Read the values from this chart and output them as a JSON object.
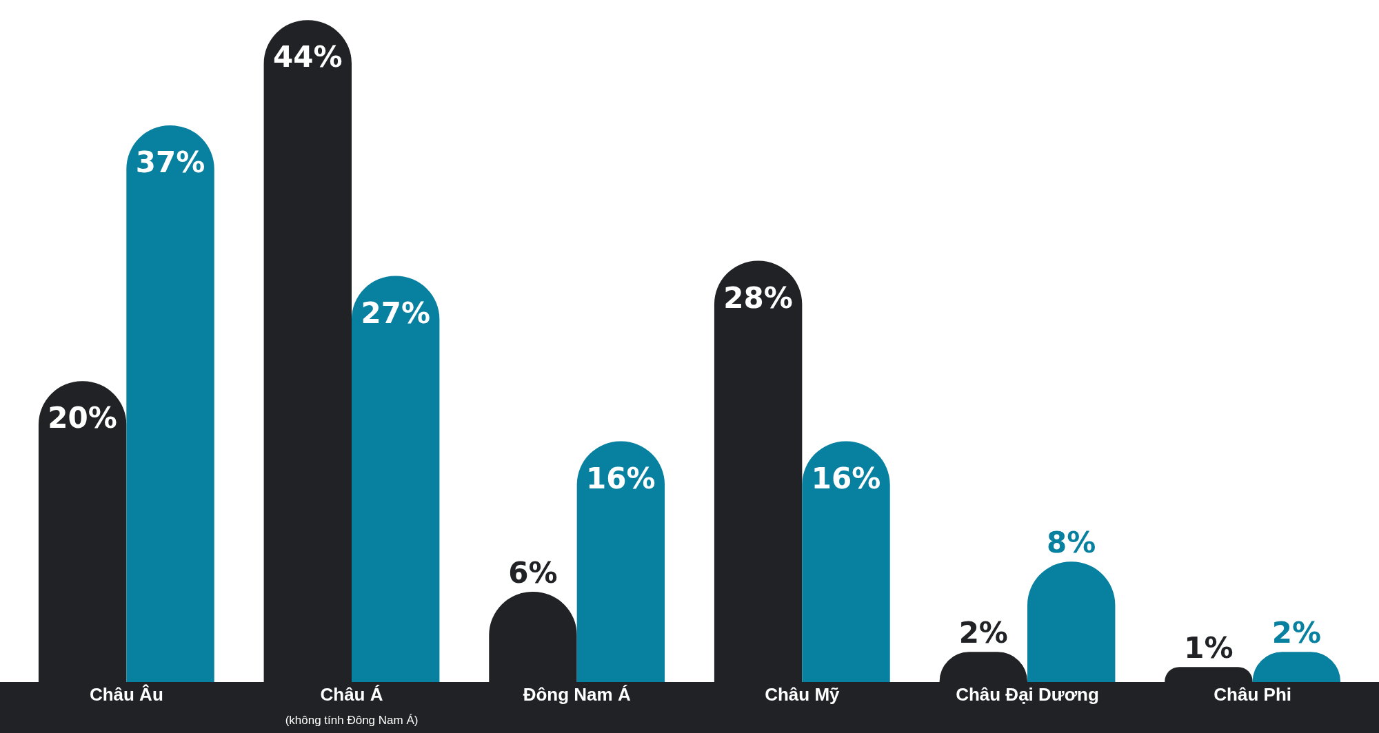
{
  "chart_data": {
    "type": "bar",
    "categories": [
      "Châu Âu",
      "Châu Á\n(không tính Đông Nam Á)",
      "Đông Nam Á",
      "Châu Mỹ",
      "Châu Đại Dương",
      "Châu Phi"
    ],
    "series": [
      {
        "color": "#212225",
        "values": [
          20,
          44,
          6,
          28,
          2,
          1
        ],
        "value_labels": [
          "20%",
          "44%",
          "6%",
          "28%",
          "2%",
          "1%"
        ]
      },
      {
        "color": "#0880a0",
        "values": [
          37,
          27,
          16,
          16,
          8,
          2
        ],
        "value_labels": [
          "37%",
          "27%",
          "16%",
          "16%",
          "8%",
          "2%"
        ]
      }
    ],
    "legend": false
  }
}
